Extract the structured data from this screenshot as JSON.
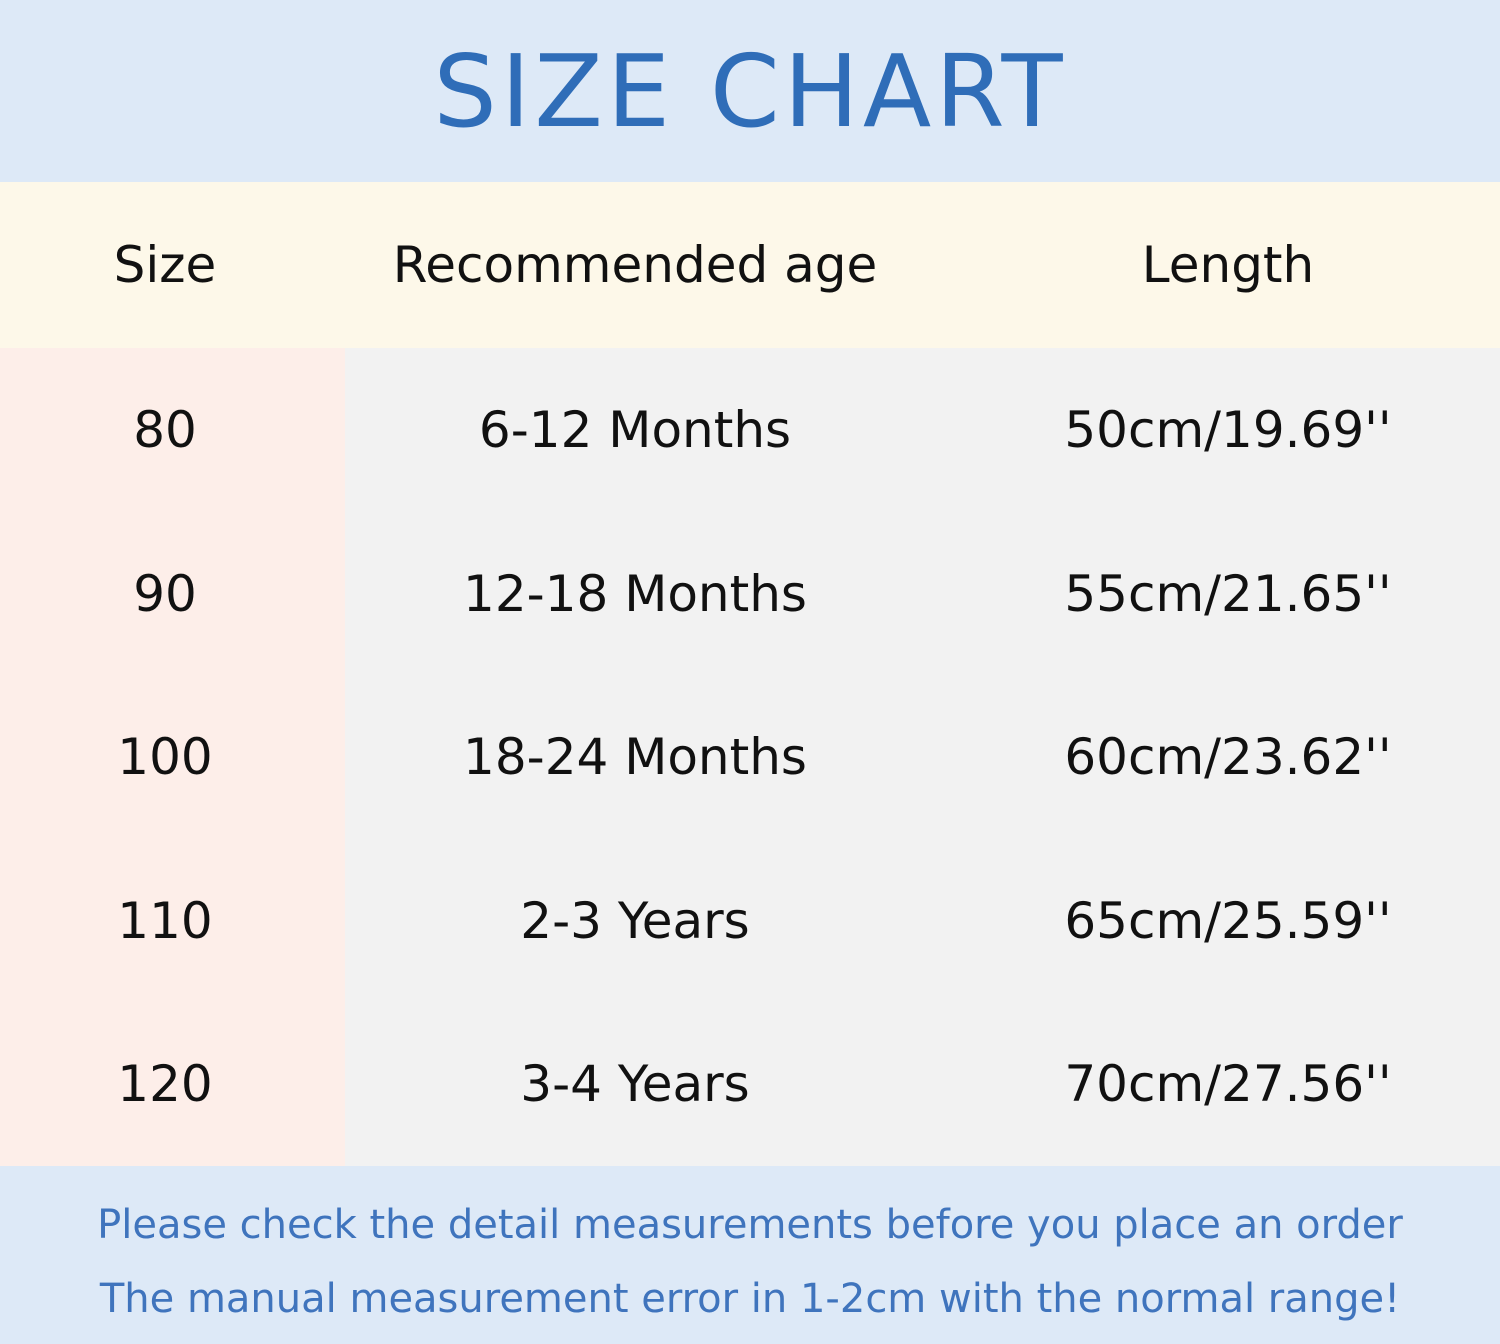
{
  "header": {
    "title": "SIZE CHART"
  },
  "table": {
    "columns": [
      "Size",
      "Recommended age",
      "Length"
    ],
    "rows": [
      [
        "80",
        "6-12 Months",
        "50cm/19.69''"
      ],
      [
        "90",
        "12-18 Months",
        "55cm/21.65''"
      ],
      [
        "100",
        "18-24 Months",
        "60cm/23.62''"
      ],
      [
        "110",
        "2-3 Years",
        "65cm/25.59''"
      ],
      [
        "120",
        "3-4 Years",
        "70cm/27.56''"
      ]
    ]
  },
  "footer": {
    "lines": [
      "Please check the detail measurements before you place an order",
      "The manual measurement error in 1-2cm with the normal range!"
    ]
  }
}
